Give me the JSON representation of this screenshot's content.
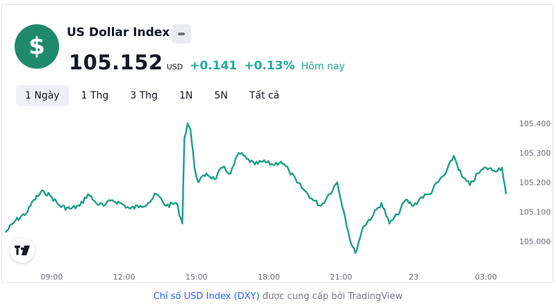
{
  "header": {
    "title": "US Dollar Index",
    "logo_icon": "dollar-sign-icon",
    "price": "105.152",
    "currency": "USD",
    "change": "+0.141",
    "change_percent": "+0.13%",
    "period": "Hôm nay",
    "accent_color": "#22ab94"
  },
  "tabs": [
    "1 Ngày",
    "1 Thg",
    "3 Thg",
    "1N",
    "5N",
    "Tất cả"
  ],
  "active_tab": "1 Ngày",
  "footer": {
    "link_text": "Chỉ số USD Index (DXY)",
    "suffix_text": " được cung cấp bởi TradingView"
  },
  "chart_data": {
    "type": "line",
    "color": "#1e9e84",
    "x_tick_labels": [
      "09:00",
      "12:00",
      "15:00",
      "18:00",
      "21:00",
      "23",
      "03:00"
    ],
    "y_tick_labels": [
      "105.400",
      "105.300",
      "105.200",
      "105.100",
      "105.000"
    ],
    "ylim": [
      104.95,
      105.43
    ],
    "grid": false,
    "series": [
      {
        "points": [
          [
            "07:05",
            105.03
          ],
          [
            "07:30",
            105.07
          ],
          [
            "08:00",
            105.1
          ],
          [
            "08:15",
            105.14
          ],
          [
            "08:40",
            105.17
          ],
          [
            "09:00",
            105.15
          ],
          [
            "09:20",
            105.12
          ],
          [
            "09:45",
            105.11
          ],
          [
            "10:10",
            105.12
          ],
          [
            "10:30",
            105.16
          ],
          [
            "10:50",
            105.13
          ],
          [
            "11:10",
            105.12
          ],
          [
            "11:30",
            105.14
          ],
          [
            "11:50",
            105.13
          ],
          [
            "12:15",
            105.11
          ],
          [
            "12:40",
            105.12
          ],
          [
            "13:00",
            105.13
          ],
          [
            "13:20",
            105.16
          ],
          [
            "13:45",
            105.12
          ],
          [
            "14:10",
            105.13
          ],
          [
            "14:25",
            105.06
          ],
          [
            "14:30",
            105.35
          ],
          [
            "14:38",
            105.4
          ],
          [
            "14:45",
            105.38
          ],
          [
            "14:55",
            105.25
          ],
          [
            "15:05",
            105.2
          ],
          [
            "15:25",
            105.23
          ],
          [
            "15:45",
            105.21
          ],
          [
            "16:05",
            105.25
          ],
          [
            "16:25",
            105.23
          ],
          [
            "16:45",
            105.3
          ],
          [
            "17:05",
            105.28
          ],
          [
            "17:25",
            105.26
          ],
          [
            "17:45",
            105.27
          ],
          [
            "18:10",
            105.26
          ],
          [
            "18:30",
            105.27
          ],
          [
            "18:50",
            105.24
          ],
          [
            "19:10",
            105.2
          ],
          [
            "19:30",
            105.17
          ],
          [
            "19:50",
            105.14
          ],
          [
            "20:10",
            105.12
          ],
          [
            "20:30",
            105.16
          ],
          [
            "20:50",
            105.2
          ],
          [
            "21:10",
            105.08
          ],
          [
            "21:25",
            104.99
          ],
          [
            "21:35",
            104.96
          ],
          [
            "21:55",
            105.05
          ],
          [
            "22:20",
            105.09
          ],
          [
            "22:40",
            105.13
          ],
          [
            "23:00",
            105.06
          ],
          [
            "23:20",
            105.09
          ],
          [
            "23:40",
            105.14
          ],
          [
            "00:00",
            105.12
          ],
          [
            "00:20",
            105.15
          ],
          [
            "00:40",
            105.16
          ],
          [
            "01:00",
            105.2
          ],
          [
            "01:20",
            105.23
          ],
          [
            "01:40",
            105.29
          ],
          [
            "02:00",
            105.22
          ],
          [
            "02:20",
            105.19
          ],
          [
            "02:40",
            105.23
          ],
          [
            "03:00",
            105.25
          ],
          [
            "03:20",
            105.24
          ],
          [
            "03:40",
            105.25
          ],
          [
            "03:50",
            105.16
          ]
        ]
      }
    ]
  }
}
